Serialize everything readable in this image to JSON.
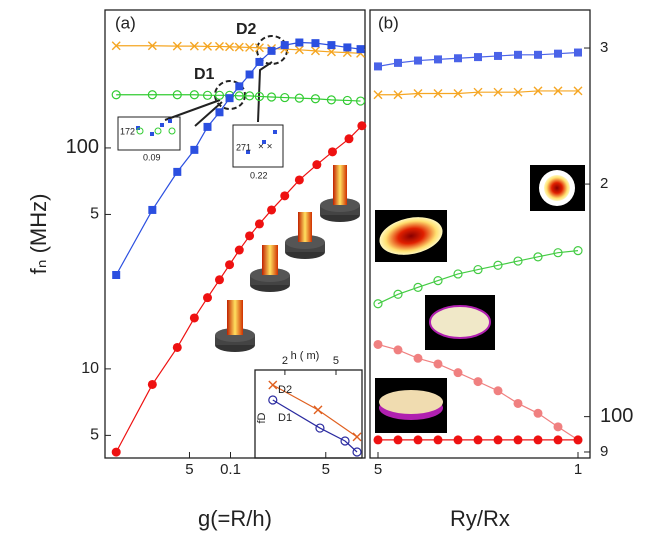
{
  "chart_data": [
    {
      "type": "scatter",
      "panel_label": "(a)",
      "x_label": "g(=R/h)",
      "y_label": "fₙ (MHz)",
      "xscale": "log",
      "yscale": "log",
      "xlim": [
        0.012,
        0.97
      ],
      "ylim": [
        3.95,
        421
      ],
      "xticks": [
        {
          "value": 0.05,
          "label": "5"
        },
        {
          "value": 0.1,
          "label": "0.1"
        },
        {
          "value": 0.5,
          "label": "5"
        }
      ],
      "yticks": [
        {
          "value": 5,
          "label": "5"
        },
        10,
        {
          "value": 50,
          "label": "5"
        },
        100
      ],
      "annotations": [
        "D1",
        "D2",
        "172",
        "0.09",
        "271",
        "0.22"
      ],
      "series": [
        {
          "color": "#f5a623",
          "marker": "cross",
          "x": [
            0.0145,
            0.0267,
            0.0407,
            0.0543,
            0.0678,
            0.083,
            0.0984,
            0.116,
            0.138,
            0.163,
            0.2,
            0.25,
            0.32,
            0.42,
            0.55,
            0.72,
            0.9
          ],
          "values": [
            290,
            290,
            289,
            289,
            288,
            288,
            287,
            286,
            285,
            284,
            282,
            280,
            278,
            275,
            272,
            270,
            268
          ]
        },
        {
          "color": "#33cc33",
          "marker": "circle-open",
          "x": [
            0.0145,
            0.0267,
            0.0407,
            0.0543,
            0.0678,
            0.083,
            0.0984,
            0.116,
            0.138,
            0.163,
            0.2,
            0.25,
            0.32,
            0.42,
            0.55,
            0.72,
            0.9
          ],
          "values": [
            174,
            174,
            174,
            174,
            173,
            173,
            173,
            172,
            172,
            171,
            170,
            169,
            168,
            167,
            165,
            164,
            163
          ]
        },
        {
          "color": "#2b4fe0",
          "marker": "square",
          "x": [
            0.0145,
            0.0267,
            0.0407,
            0.0543,
            0.0678,
            0.083,
            0.0984,
            0.116,
            0.138,
            0.163,
            0.2,
            0.25,
            0.32,
            0.42,
            0.55,
            0.72,
            0.9
          ],
          "values": [
            26.6,
            52.4,
            77.9,
            98,
            124.5,
            145,
            168,
            190,
            215,
            245,
            275,
            292,
            300,
            298,
            292,
            285,
            280
          ]
        },
        {
          "color": "#ee1111",
          "marker": "circle",
          "x": [
            0.0145,
            0.0267,
            0.0407,
            0.0543,
            0.0678,
            0.083,
            0.0984,
            0.116,
            0.138,
            0.163,
            0.2,
            0.25,
            0.32,
            0.43,
            0.56,
            0.74,
            0.92
          ],
          "values": [
            4.2,
            8.5,
            12.5,
            17,
            21,
            25.3,
            29.6,
            34.5,
            40,
            45.3,
            52.4,
            60.7,
            71.6,
            84,
            96,
            110,
            126
          ]
        }
      ]
    },
    {
      "type": "scatter",
      "panel_label": "(b)",
      "x_label": "Ry/Rx",
      "xscale": "linear",
      "yscale": "log",
      "xlim": [
        0.48,
        1.03
      ],
      "ylim": [
        88.4,
        336
      ],
      "xticks": [
        {
          "value": 0.5,
          "label": "5"
        },
        1
      ],
      "yticks": [
        {
          "value": 300,
          "label": "3"
        },
        {
          "value": 200,
          "label": "2"
        },
        100,
        {
          "value": 90,
          "label": "9"
        }
      ],
      "series": [
        {
          "color": "#4a63e8",
          "marker": "square",
          "x": [
            0.5,
            0.55,
            0.6,
            0.65,
            0.7,
            0.75,
            0.8,
            0.85,
            0.9,
            0.95,
            1.0
          ],
          "values": [
            284,
            287,
            289,
            290,
            291,
            292,
            293,
            294,
            294,
            295,
            296
          ]
        },
        {
          "color": "#f5a623",
          "marker": "cross",
          "x": [
            0.5,
            0.55,
            0.6,
            0.65,
            0.7,
            0.75,
            0.8,
            0.85,
            0.9,
            0.95,
            1.0
          ],
          "values": [
            261,
            261,
            262,
            262,
            262,
            263,
            263,
            263,
            264,
            264,
            264
          ]
        },
        {
          "color": "#44cc44",
          "marker": "circle-open",
          "x": [
            0.5,
            0.55,
            0.6,
            0.65,
            0.7,
            0.75,
            0.8,
            0.85,
            0.9,
            0.95,
            1.0
          ],
          "values": [
            140,
            144,
            147,
            150,
            153,
            155,
            157,
            159,
            161,
            163,
            164
          ]
        },
        {
          "color": "#f08080",
          "marker": "circle",
          "x": [
            0.5,
            0.55,
            0.6,
            0.65,
            0.7,
            0.75,
            0.8,
            0.85,
            0.9,
            0.95,
            1.0
          ],
          "values": [
            124,
            122,
            119,
            117,
            114,
            111,
            108,
            104,
            101,
            97,
            93.3
          ]
        },
        {
          "color": "#ee1111",
          "marker": "circle",
          "x": [
            0.5,
            0.55,
            0.6,
            0.65,
            0.7,
            0.75,
            0.8,
            0.85,
            0.9,
            0.95,
            1.0
          ],
          "values": [
            93.3,
            93.3,
            93.3,
            93.3,
            93.3,
            93.3,
            93.3,
            93.3,
            93.3,
            93.3,
            93.3
          ]
        }
      ]
    },
    {
      "type": "line",
      "x_label": "h ( m)",
      "y_label": "fD",
      "xscale": "log",
      "yscale": "log",
      "xlim": [
        1.17,
        7.97
      ],
      "ylim": [
        1,
        10
      ],
      "xticks": [
        2,
        5
      ],
      "series": [
        {
          "name": "D2",
          "color": "#e06020",
          "marker": "cross",
          "x": [
            1.61,
            3.62,
            7.29
          ],
          "values": [
            6.76,
            3.52,
            1.74
          ]
        },
        {
          "name": "D1",
          "color": "#2a2aa0",
          "marker": "circle-open",
          "x": [
            1.61,
            3.75,
            5.88,
            7.29
          ],
          "values": [
            4.56,
            2.19,
            1.56,
            1.17
          ]
        }
      ]
    }
  ]
}
